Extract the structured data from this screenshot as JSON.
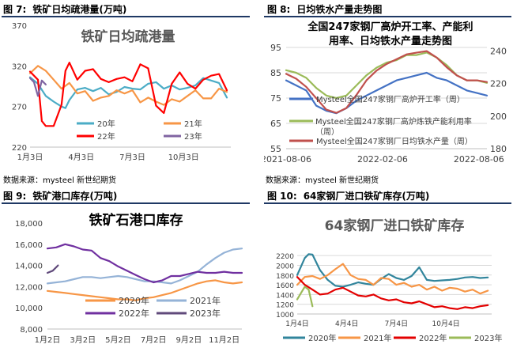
{
  "figures": [
    {
      "label": "图 7:",
      "caption": "铁矿日均疏港量(万吨)",
      "source": "数据来源：mysteel 新世纪期货"
    },
    {
      "label": "图 8:",
      "caption": "日均铁水产量走势图",
      "source": "数据来源：mysteel 新世纪期货"
    },
    {
      "label": "图 9:",
      "caption": "铁矿港口库存(万吨)",
      "source": ""
    },
    {
      "label": "图 10:",
      "caption": "64家钢厂进口铁矿库存(万吨)",
      "source": ""
    }
  ],
  "chart_data": [
    {
      "type": "line",
      "title": "铁矿日均疏港量",
      "xlabel": "",
      "ylabel": "",
      "x_ticks": [
        "1月3日",
        "4月3日",
        "7月3日",
        "10月3日"
      ],
      "y_ticks": [
        "220",
        "270",
        "320",
        "370"
      ],
      "ylim": [
        220,
        370
      ],
      "x_domain": [
        1,
        52
      ],
      "series": [
        {
          "name": "20年",
          "color": "#4bacc6",
          "x": [
            1,
            3,
            5,
            7,
            9,
            10,
            11,
            13,
            15,
            17,
            19,
            21,
            23,
            25,
            27,
            29,
            31,
            33,
            35,
            37,
            39,
            41,
            43,
            45,
            47,
            49,
            51
          ],
          "values": [
            306,
            298,
            283,
            276,
            270,
            268,
            278,
            291,
            293,
            289,
            293,
            285,
            288,
            294,
            292,
            291,
            298,
            300,
            292,
            296,
            291,
            293,
            296,
            305,
            302,
            299,
            281
          ]
        },
        {
          "name": "21年",
          "color": "#f79646",
          "x": [
            1,
            3,
            5,
            7,
            9,
            11,
            13,
            15,
            17,
            19,
            21,
            23,
            25,
            27,
            29,
            31,
            33,
            35,
            37,
            39,
            41,
            43,
            45,
            47,
            49,
            51
          ],
          "values": [
            311,
            320,
            314,
            303,
            292,
            299,
            286,
            289,
            277,
            281,
            283,
            290,
            286,
            290,
            275,
            281,
            276,
            272,
            279,
            276,
            283,
            290,
            280,
            280,
            292,
            288
          ]
        },
        {
          "name": "22年",
          "color": "#ff0000",
          "x": [
            1,
            3,
            4,
            5,
            7,
            9,
            10,
            11,
            13,
            15,
            17,
            19,
            21,
            23,
            25,
            27,
            29,
            31,
            33,
            35,
            37,
            39,
            41,
            43,
            45,
            47,
            49,
            51
          ],
          "values": [
            313,
            303,
            252,
            246,
            246,
            272,
            314,
            324,
            303,
            314,
            316,
            304,
            300,
            304,
            306,
            301,
            322,
            317,
            271,
            262,
            298,
            312,
            298,
            292,
            303,
            308,
            310,
            290
          ]
        },
        {
          "name": "23年",
          "color": "#8064a2",
          "x": [
            1,
            2,
            3,
            4,
            5
          ],
          "values": [
            305,
            300,
            283,
            302,
            297
          ]
        }
      ]
    },
    {
      "type": "line",
      "title": "全国247家钢厂高炉开工率、产能利用率、日均铁水产量走势图",
      "xlabel": "",
      "ylabel": "",
      "x_ticks": [
        "2021-08-06",
        "2022-02-06",
        "2022-08-06"
      ],
      "y_ticks": [
        "55",
        "65",
        "75",
        "85",
        "95"
      ],
      "y2_ticks": [
        "180",
        "200",
        "220",
        "240"
      ],
      "ylim": [
        55,
        100
      ],
      "y2lim": [
        180,
        250
      ],
      "x_domain": [
        0,
        1
      ],
      "series": [
        {
          "name": "Mysteel全国247家钢厂高炉开工率（周）",
          "axis": "left",
          "color": "#4472c4",
          "x": [
            0,
            0.05,
            0.1,
            0.15,
            0.2,
            0.25,
            0.3,
            0.35,
            0.4,
            0.45,
            0.5,
            0.55,
            0.6,
            0.65,
            0.7,
            0.75,
            0.8,
            0.85,
            0.9,
            0.95,
            1.0
          ],
          "values": [
            82,
            80,
            78,
            72,
            70,
            69,
            71,
            74,
            76,
            78,
            80,
            82,
            83,
            84,
            85,
            83,
            82,
            80,
            78,
            77,
            76
          ]
        },
        {
          "name": "Mysteel全国247家钢厂高炉炼铁产能利用率（周）",
          "axis": "left",
          "color": "#9bbb59",
          "x": [
            0,
            0.05,
            0.1,
            0.15,
            0.2,
            0.25,
            0.3,
            0.35,
            0.4,
            0.45,
            0.5,
            0.55,
            0.6,
            0.65,
            0.7,
            0.75,
            0.8,
            0.85,
            0.9,
            0.95,
            1.0
          ],
          "values": [
            86,
            85,
            83,
            79,
            76,
            75,
            76,
            80,
            84,
            87,
            89,
            90,
            92,
            92,
            93,
            91,
            88,
            84,
            82,
            82,
            81
          ]
        },
        {
          "name": "Mysteel全国247家钢厂日均铁水产量（周）",
          "axis": "right",
          "color": "#c0504d",
          "x": [
            0,
            0.05,
            0.1,
            0.15,
            0.2,
            0.25,
            0.3,
            0.35,
            0.4,
            0.45,
            0.5,
            0.55,
            0.6,
            0.65,
            0.7,
            0.75,
            0.8,
            0.85,
            0.9,
            0.95,
            1.0
          ],
          "values": [
            226,
            223,
            218,
            211,
            204,
            202,
            205,
            213,
            222,
            228,
            232,
            235,
            238,
            239,
            240,
            236,
            230,
            225,
            222,
            222,
            221
          ]
        }
      ]
    },
    {
      "type": "line",
      "title": "铁矿石港口库存",
      "xlabel": "",
      "ylabel": "",
      "x_ticks": [
        "1月2日",
        "3月2日",
        "5月2日",
        "7月2日",
        "9月2日",
        "11月2日"
      ],
      "y_ticks": [
        "8,000",
        "10,000",
        "12,000",
        "14,000",
        "16,000",
        "18,000"
      ],
      "ylim": [
        8000,
        18000
      ],
      "x_domain": [
        1,
        12
      ],
      "series": [
        {
          "name": "2020年",
          "color": "#f79646",
          "x": [
            1,
            1.5,
            2,
            2.5,
            3,
            3.5,
            4,
            4.5,
            5,
            5.5,
            6,
            6.5,
            7,
            7.5,
            8,
            8.5,
            9,
            9.5,
            10,
            10.5,
            11,
            11.5,
            12
          ],
          "values": [
            11600,
            11500,
            11400,
            11300,
            11200,
            11100,
            11000,
            10900,
            10800,
            10800,
            10700,
            10900,
            11000,
            11200,
            11400,
            11700,
            12000,
            12300,
            12500,
            12600,
            12400,
            12300,
            12400
          ]
        },
        {
          "name": "2021年",
          "color": "#95b3d7",
          "x": [
            1,
            1.5,
            2,
            2.5,
            3,
            3.5,
            4,
            4.5,
            5,
            5.5,
            6,
            6.5,
            7,
            7.5,
            8,
            8.5,
            9,
            9.5,
            10,
            10.5,
            11,
            11.5,
            12
          ],
          "values": [
            12300,
            12400,
            12500,
            12700,
            12900,
            12900,
            12800,
            12900,
            13000,
            12900,
            12700,
            12500,
            12500,
            12400,
            12300,
            12600,
            13000,
            13400,
            14100,
            14700,
            15200,
            15500,
            15600
          ]
        },
        {
          "name": "2022年",
          "color": "#7030a0",
          "x": [
            1,
            1.5,
            2,
            2.5,
            3,
            3.5,
            4,
            4.5,
            5,
            5.5,
            6,
            6.5,
            7,
            7.5,
            8,
            8.5,
            9,
            9.5,
            10,
            10.5,
            11,
            11.5,
            12
          ],
          "values": [
            15600,
            15700,
            16000,
            15800,
            15500,
            15400,
            14700,
            14400,
            13900,
            13500,
            13100,
            12700,
            12400,
            12600,
            13000,
            13000,
            13200,
            13400,
            13300,
            13300,
            13400,
            13300,
            13300
          ]
        },
        {
          "name": "2023年",
          "color": "#604a7b",
          "x": [
            1,
            1.3,
            1.6
          ],
          "values": [
            13300,
            13500,
            14000
          ]
        }
      ]
    },
    {
      "type": "line",
      "title": "64家钢厂进口铁矿库存",
      "xlabel": "",
      "ylabel": "",
      "x_ticks": [
        "1月4日",
        "4月4日",
        "7月4日",
        "10月4日"
      ],
      "y_ticks": [
        "1000",
        "1200",
        "1400",
        "1600",
        "1800",
        "2000",
        "2200"
      ],
      "ylim": [
        1000,
        2300
      ],
      "x_domain": [
        1,
        52
      ],
      "series": [
        {
          "name": "2020年",
          "color": "#31859c",
          "x": [
            1,
            3,
            4,
            5,
            7,
            9,
            11,
            13,
            15,
            17,
            19,
            21,
            23,
            25,
            27,
            29,
            31,
            33,
            35,
            37,
            39,
            41,
            43,
            45,
            47,
            49,
            51
          ],
          "values": [
            1800,
            2150,
            2230,
            2220,
            1900,
            1700,
            1580,
            1560,
            1600,
            1650,
            1620,
            1600,
            1720,
            1820,
            1740,
            1700,
            1780,
            1960,
            1700,
            1680,
            1690,
            1700,
            1720,
            1750,
            1760,
            1740,
            1750
          ]
        },
        {
          "name": "2021年",
          "color": "#f79646",
          "x": [
            1,
            3,
            5,
            7,
            9,
            11,
            13,
            15,
            17,
            19,
            21,
            23,
            25,
            27,
            29,
            31,
            33,
            35,
            37,
            39,
            41,
            43,
            45,
            47,
            49,
            51
          ],
          "values": [
            1600,
            1760,
            1780,
            1720,
            1800,
            1920,
            2030,
            1800,
            1720,
            1700,
            1600,
            1740,
            1720,
            1600,
            1640,
            1560,
            1600,
            1500,
            1560,
            1480,
            1540,
            1520,
            1460,
            1500,
            1420,
            1480
          ]
        },
        {
          "name": "2022年",
          "color": "#e30000",
          "x": [
            1,
            3,
            5,
            7,
            9,
            11,
            13,
            15,
            17,
            19,
            21,
            23,
            25,
            27,
            29,
            31,
            33,
            35,
            37,
            39,
            41,
            43,
            45,
            47,
            49,
            51
          ],
          "values": [
            1760,
            1600,
            1500,
            1400,
            1420,
            1500,
            1540,
            1460,
            1380,
            1360,
            1400,
            1320,
            1280,
            1300,
            1240,
            1220,
            1260,
            1200,
            1140,
            1160,
            1120,
            1100,
            1140,
            1120,
            1160,
            1180
          ]
        },
        {
          "name": "2023年",
          "color": "#9bbb59",
          "x": [
            1,
            3,
            4,
            5
          ],
          "values": [
            1300,
            1560,
            1500,
            1160
          ]
        }
      ]
    }
  ]
}
